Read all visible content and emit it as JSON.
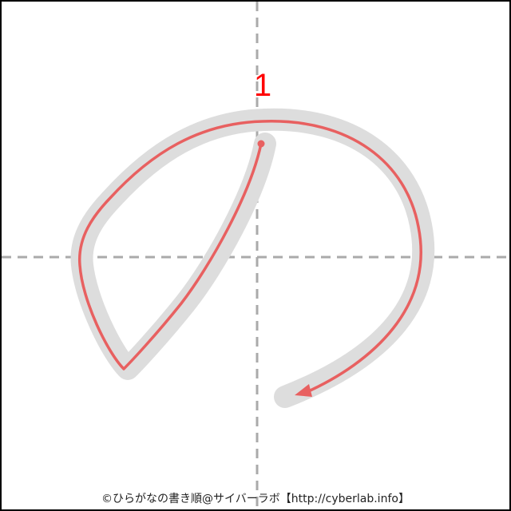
{
  "diagram": {
    "character": "の",
    "stroke_count": 1,
    "strokes": [
      {
        "number_label": "1",
        "has_direction_arrow": true
      }
    ]
  },
  "footer": {
    "credit": "©ひらがなの書き順@サイバーラボ【http://cyberlab.info】"
  },
  "colors": {
    "frame": "#000000",
    "guide_lines": "#aaaaaa",
    "glyph_shadow": "#dddddd",
    "stroke_path": "#e86060",
    "number_label": "#ff0000"
  }
}
